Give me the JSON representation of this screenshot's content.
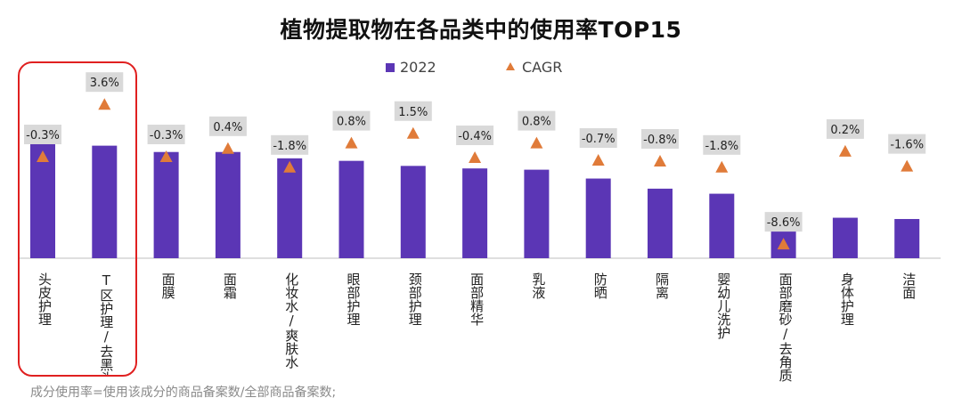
{
  "title": "植物提取物在各品类中的使用率TOP15",
  "legend": {
    "bar_label": "2022",
    "marker_label": "CAGR"
  },
  "footnote": "成分使用率=使用该成分的商品备案数/全部商品备案数;",
  "colors": {
    "bar": "#5b36b5",
    "marker": "#e07b39",
    "label_bg": "#d9d9d9",
    "highlight": "#e02020"
  },
  "chart_data": {
    "type": "bar",
    "categories": [
      "头皮护理",
      "T区护理/去黑头",
      "面膜",
      "面霜",
      "化妆水/爽肤水",
      "眼部护理",
      "颈部护理",
      "面部精华",
      "乳液",
      "防晒",
      "隔离",
      "婴幼儿洗护",
      "面部磨砂/去角质",
      "身体护理",
      "洁面"
    ],
    "series": [
      {
        "name": "2022",
        "values": [
          100,
          89,
          84,
          84,
          79,
          77,
          73,
          71,
          70,
          63,
          55,
          51,
          22,
          32,
          31
        ]
      },
      {
        "name": "CAGR",
        "values": [
          -0.3,
          3.6,
          -0.3,
          0.4,
          -1.8,
          0.8,
          1.5,
          -0.4,
          0.8,
          -0.7,
          -0.8,
          -1.8,
          -8.6,
          0.2,
          -1.6
        ],
        "labels": [
          "-0.3%",
          "3.6%",
          "-0.3%",
          "0.4%",
          "-1.8%",
          "0.8%",
          "1.5%",
          "-0.4%",
          "0.8%",
          "-0.7%",
          "-0.8%",
          "-1.8%",
          "-8.6%",
          "0.2%",
          "-1.6%"
        ]
      }
    ],
    "highlighted_categories": [
      "头皮护理",
      "T区护理/去黑头"
    ],
    "legend_position": "top",
    "grid": false
  }
}
